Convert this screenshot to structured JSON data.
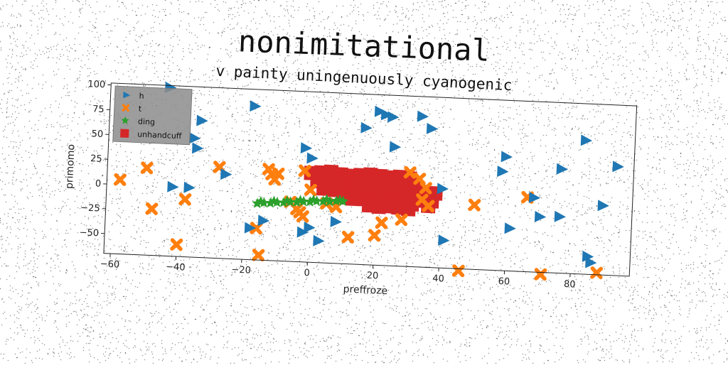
{
  "title": "nonimitational",
  "subtitle": "v painty uningenuously cyanogenic",
  "chart_data": {
    "type": "scatter",
    "xlabel": "preffroze",
    "ylabel": "primomo",
    "xlim": [
      -62,
      98
    ],
    "ylim": [
      -70,
      102
    ],
    "xticks": [
      -60,
      -40,
      -20,
      0,
      20,
      40,
      60,
      80
    ],
    "yticks": [
      100,
      75,
      50,
      25,
      0,
      -25,
      -50
    ],
    "grid": false,
    "legend_position": "top-left",
    "series": [
      {
        "name": "h",
        "marker": "triangle-right",
        "color": "#1f77b4",
        "points": [
          [
            -44,
            100
          ],
          [
            -34,
            68
          ],
          [
            -36,
            50
          ],
          [
            -35,
            40
          ],
          [
            -42,
            0
          ],
          [
            -37,
            0
          ],
          [
            -26,
            15
          ],
          [
            -18,
            85
          ],
          [
            -2,
            45
          ],
          [
            0,
            35
          ],
          [
            16,
            68
          ],
          [
            20,
            85
          ],
          [
            22,
            82
          ],
          [
            24,
            80
          ],
          [
            25,
            50
          ],
          [
            33,
            82
          ],
          [
            36,
            70
          ],
          [
            40,
            10
          ],
          [
            -18,
            -38
          ],
          [
            -14,
            -30
          ],
          [
            -2,
            -40
          ],
          [
            0,
            -35
          ],
          [
            3,
            -48
          ],
          [
            8,
            -28
          ],
          [
            41,
            -42
          ],
          [
            58,
            30
          ],
          [
            59,
            45
          ],
          [
            61,
            -27
          ],
          [
            68,
            5
          ],
          [
            70,
            -14
          ],
          [
            76,
            -13
          ],
          [
            76,
            35
          ],
          [
            83,
            65
          ],
          [
            85,
            -52
          ],
          [
            86,
            -58
          ],
          [
            89,
            0
          ],
          [
            93,
            40
          ]
        ]
      },
      {
        "name": "t",
        "marker": "x",
        "color": "#ff7f0e",
        "points": [
          [
            -58,
            5
          ],
          [
            -50,
            18
          ],
          [
            -48,
            -23
          ],
          [
            -40,
            -58
          ],
          [
            -38,
            -12
          ],
          [
            -28,
            22
          ],
          [
            -16,
            -38
          ],
          [
            -15,
            -65
          ],
          [
            -13,
            22
          ],
          [
            -12,
            17
          ],
          [
            -11,
            12
          ],
          [
            -10,
            18
          ],
          [
            -6,
            -10
          ],
          [
            -4,
            -17
          ],
          [
            -3,
            -20
          ],
          [
            -2,
            -24
          ],
          [
            -2,
            22
          ],
          [
            0,
            3
          ],
          [
            5,
            -10
          ],
          [
            8,
            -13
          ],
          [
            12,
            -43
          ],
          [
            20,
            -40
          ],
          [
            22,
            -27
          ],
          [
            28,
            -23
          ],
          [
            30,
            25
          ],
          [
            33,
            19
          ],
          [
            34,
            -2
          ],
          [
            35,
            10
          ],
          [
            36,
            -8
          ],
          [
            46,
            -72
          ],
          [
            50,
            -5
          ],
          [
            66,
            5
          ],
          [
            71,
            -72
          ],
          [
            88,
            -68
          ]
        ]
      },
      {
        "name": "ding",
        "marker": "star",
        "color": "#2ca02c",
        "points": [
          [
            -16,
            -13
          ],
          [
            -14,
            -12
          ],
          [
            -12,
            -12
          ],
          [
            -10,
            -11
          ],
          [
            -8,
            -11
          ],
          [
            -6,
            -10
          ],
          [
            -4,
            -10
          ],
          [
            -2,
            -9
          ],
          [
            0,
            -9
          ],
          [
            2,
            -8
          ],
          [
            4,
            -8
          ],
          [
            6,
            -8
          ],
          [
            8,
            -7
          ],
          [
            10,
            -7
          ],
          [
            -15,
            -11
          ],
          [
            -11,
            -10
          ],
          [
            -7,
            -9
          ],
          [
            -3,
            -8
          ],
          [
            1,
            -7
          ],
          [
            5,
            -6
          ],
          [
            9,
            -6
          ]
        ]
      },
      {
        "name": "unhandcuff",
        "marker": "square",
        "color": "#d62728",
        "points": [
          [
            0,
            20
          ],
          [
            3,
            21
          ],
          [
            6,
            22
          ],
          [
            9,
            20
          ],
          [
            12,
            19
          ],
          [
            15,
            20
          ],
          [
            18,
            21
          ],
          [
            21,
            20
          ],
          [
            24,
            19
          ],
          [
            27,
            20
          ],
          [
            30,
            19
          ],
          [
            2,
            12
          ],
          [
            5,
            13
          ],
          [
            8,
            12
          ],
          [
            11,
            11
          ],
          [
            14,
            12
          ],
          [
            17,
            13
          ],
          [
            20,
            12
          ],
          [
            23,
            11
          ],
          [
            26,
            12
          ],
          [
            29,
            11
          ],
          [
            32,
            10
          ],
          [
            35,
            4
          ],
          [
            38,
            5
          ],
          [
            4,
            5
          ],
          [
            7,
            4
          ],
          [
            10,
            4
          ],
          [
            13,
            3
          ],
          [
            16,
            4
          ],
          [
            19,
            3
          ],
          [
            22,
            3
          ],
          [
            25,
            4
          ],
          [
            28,
            3
          ],
          [
            31,
            2
          ],
          [
            34,
            -3
          ],
          [
            37,
            -3
          ],
          [
            10,
            -3
          ],
          [
            13,
            -4
          ],
          [
            16,
            -4
          ],
          [
            19,
            -5
          ],
          [
            22,
            -4
          ],
          [
            25,
            -5
          ],
          [
            28,
            -6
          ],
          [
            31,
            -7
          ],
          [
            36,
            -8
          ],
          [
            18,
            -10
          ],
          [
            21,
            -11
          ],
          [
            24,
            -10
          ],
          [
            27,
            -11
          ],
          [
            30,
            -12
          ]
        ]
      }
    ]
  }
}
